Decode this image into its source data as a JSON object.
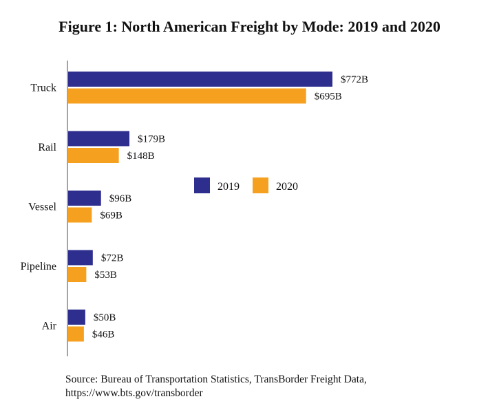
{
  "chart_data": {
    "type": "bar",
    "orientation": "horizontal",
    "title": "Figure 1: North American Freight by Mode: 2019 and 2020",
    "categories": [
      "Truck",
      "Rail",
      "Vessel",
      "Pipeline",
      "Air"
    ],
    "series": [
      {
        "name": "2019",
        "values": [
          772,
          179,
          96,
          72,
          50
        ],
        "labels": [
          "$772B",
          "$179B",
          "$96B",
          "$72B",
          "$50B"
        ]
      },
      {
        "name": "2020",
        "values": [
          695,
          148,
          69,
          53,
          46
        ],
        "labels": [
          "$695B",
          "$148B",
          "$69B",
          "$53B",
          "$46B"
        ]
      }
    ],
    "colors": {
      "2019": "#2e2e8f",
      "2020": "#f5a01f"
    },
    "xlim": [
      0,
      800
    ],
    "grid": false,
    "legend": "center-right",
    "xlabel": "",
    "ylabel": ""
  },
  "source": {
    "line1": "Source: Bureau of Transportation Statistics, TransBorder Freight Data,",
    "line2": "https://www.bts.gov/transborder"
  }
}
